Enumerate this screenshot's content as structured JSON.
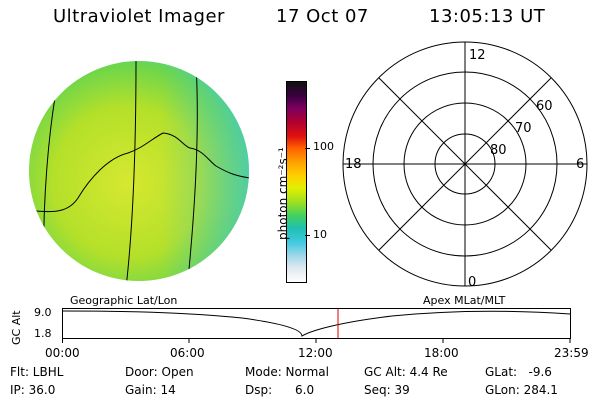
{
  "header": {
    "app_title": "Ultraviolet Imager",
    "date": "17 Oct 07",
    "time": "13:05:13 UT"
  },
  "colorbar": {
    "unit_label": "photon cm⁻²s⁻¹",
    "tick_100": "100",
    "tick_10": "10",
    "colors": [
      "#111111",
      "#3a0040",
      "#7a0060",
      "#b00030",
      "#e01010",
      "#ff6000",
      "#ffa000",
      "#ffd000",
      "#e0f000",
      "#a0e020",
      "#40d060",
      "#20c0b0",
      "#40c8e0",
      "#a0d8e8",
      "#e0e8f0",
      "#ffffff"
    ]
  },
  "polar": {
    "lat_labels": [
      "60",
      "70",
      "80"
    ],
    "mlt_labels": {
      "top": "12",
      "left": "18",
      "right": "6",
      "bottom": "0"
    }
  },
  "timeline": {
    "left_title": "Geographic Lat/Lon",
    "right_title": "Apex MLat/MLT",
    "y_axis_title": "GC Alt",
    "y_max": "9.0",
    "y_min": "1.8",
    "x_ticks": [
      "00:00",
      "06:00",
      "12:00",
      "18:00",
      "23:59"
    ],
    "current_time_marker_color": "#e00000"
  },
  "status": {
    "filter": "Flt: LBHL",
    "ip": "IP: 36.0",
    "door": "Door: Open",
    "gain": "Gain: 14",
    "mode": "Mode: Normal",
    "dsp": "Dsp:      6.0",
    "gc_alt": "GC Alt: 4.4 Re",
    "seq": "Seq: 39",
    "glat": "GLat:   -9.6",
    "glon": "GLon: 284.1"
  }
}
